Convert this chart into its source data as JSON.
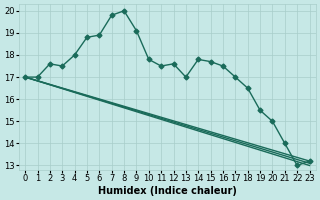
{
  "xlabel": "Humidex (Indice chaleur)",
  "bg_color": "#c6e8e6",
  "grid_color": "#a8ceca",
  "line_color": "#1a6b5a",
  "xlim": [
    -0.5,
    23.5
  ],
  "ylim": [
    12.8,
    20.3
  ],
  "xticks": [
    0,
    1,
    2,
    3,
    4,
    5,
    6,
    7,
    8,
    9,
    10,
    11,
    12,
    13,
    14,
    15,
    16,
    17,
    18,
    19,
    20,
    21,
    22,
    23
  ],
  "yticks": [
    13,
    14,
    15,
    16,
    17,
    18,
    19,
    20
  ],
  "series1_x": [
    0,
    1,
    2,
    3,
    4,
    5,
    6,
    7,
    8,
    9,
    10,
    11,
    12,
    13,
    14,
    15,
    16,
    17,
    18,
    19,
    20,
    21,
    22,
    23
  ],
  "series1_y": [
    17.0,
    17.0,
    17.6,
    17.5,
    18.0,
    18.8,
    18.9,
    19.8,
    20.0,
    19.1,
    17.8,
    17.5,
    17.6,
    17.0,
    17.8,
    17.7,
    17.5,
    17.0,
    16.5,
    15.5,
    15.0,
    14.0,
    13.0,
    13.2
  ],
  "trend1_x": [
    0,
    23
  ],
  "trend1_y": [
    17.0,
    13.2
  ],
  "trend2_x": [
    0,
    23
  ],
  "trend2_y": [
    17.0,
    13.1
  ],
  "trend3_x": [
    0,
    23
  ],
  "trend3_y": [
    17.0,
    13.0
  ],
  "marker": "D",
  "markersize": 2.5,
  "linewidth": 1.0,
  "xlabel_fontsize": 7,
  "tick_fontsize": 6
}
